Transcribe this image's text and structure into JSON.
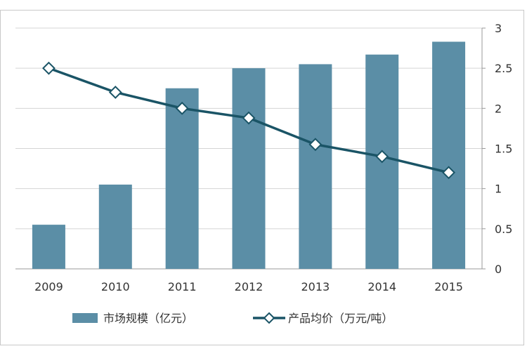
{
  "chart_data": {
    "type": "bar",
    "categories": [
      "2009",
      "2010",
      "2011",
      "2012",
      "2013",
      "2014",
      "2015"
    ],
    "series": [
      {
        "name": "市场规模（亿元）",
        "type": "bar",
        "axis": "left",
        "color": "#5b8ea6",
        "values": [
          0.55,
          1.05,
          2.25,
          2.5,
          2.55,
          2.67,
          2.83
        ]
      },
      {
        "name": "产品均价（万元/吨）",
        "type": "line",
        "axis": "right",
        "color": "#1a5466",
        "marker": "diamond",
        "values": [
          2.5,
          2.2,
          2.0,
          1.88,
          1.55,
          1.4,
          1.2
        ]
      }
    ],
    "left_axis": {
      "ylim": [
        0,
        3
      ]
    },
    "right_axis": {
      "ylim": [
        0,
        3
      ],
      "ticks": [
        "0",
        "0.5",
        "1",
        "1.5",
        "2",
        "2.5",
        "3"
      ]
    },
    "grid": true,
    "legend_position": "bottom"
  }
}
